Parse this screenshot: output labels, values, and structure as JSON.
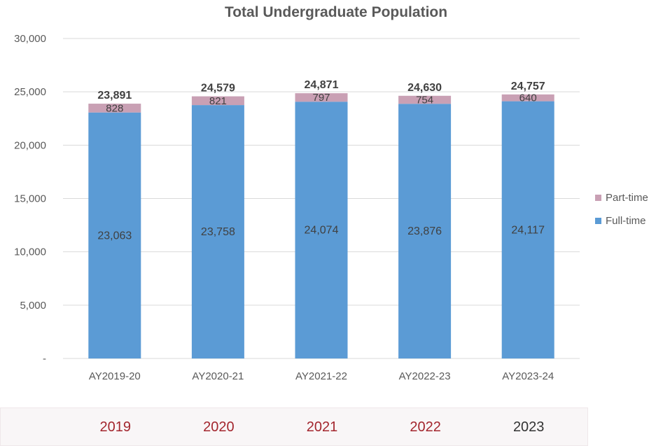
{
  "chart_data": {
    "type": "bar",
    "stacked": true,
    "title": "Total Undergraduate Population",
    "categories": [
      "AY2019-20",
      "AY2020-21",
      "AY2021-22",
      "AY2022-23",
      "AY2023-24"
    ],
    "series": [
      {
        "name": "Full-time",
        "color": "#5b9bd5",
        "values": [
          23063,
          23758,
          24074,
          23876,
          24117
        ],
        "labels": [
          "23,063",
          "23,758",
          "24,074",
          "23,876",
          "24,117"
        ]
      },
      {
        "name": "Part-time",
        "color": "#c9a0b4",
        "values": [
          828,
          821,
          797,
          754,
          640
        ],
        "labels": [
          "828",
          "821",
          "797",
          "754",
          "640"
        ]
      }
    ],
    "totals": [
      23891,
      24579,
      24871,
      24630,
      24757
    ],
    "total_labels": [
      "23,891",
      "24,579",
      "24,871",
      "24,630",
      "24,757"
    ],
    "ylim": [
      0,
      30000
    ],
    "yticks": [
      0,
      5000,
      10000,
      15000,
      20000,
      25000,
      30000
    ],
    "ytick_labels": [
      "-",
      "5,000",
      "10,000",
      "15,000",
      "20,000",
      "25,000",
      "30,000"
    ],
    "grid": true,
    "legend_position": "right",
    "legend_order": [
      "Part-time",
      "Full-time"
    ]
  },
  "year_strip": {
    "items": [
      {
        "label": "2019",
        "color": "#a3262e"
      },
      {
        "label": "2020",
        "color": "#a3262e"
      },
      {
        "label": "2021",
        "color": "#a3262e"
      },
      {
        "label": "2022",
        "color": "#a3262e"
      },
      {
        "label": "2023",
        "color": "#333333"
      }
    ]
  }
}
